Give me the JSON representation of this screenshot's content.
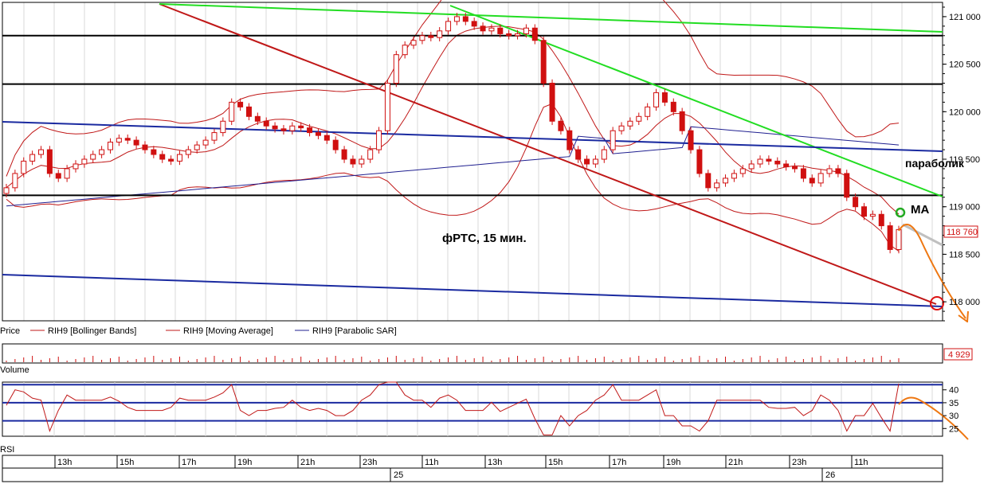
{
  "chart_data": {
    "type": "line",
    "title": "фРТС,  15 мин.",
    "annotations": {
      "sar_label": "параболик",
      "ma_label": "МА"
    },
    "price_panel": {
      "ylim": [
        117800,
        121150
      ],
      "yticks": [
        118000,
        118500,
        119000,
        119500,
        120000,
        120500,
        121000
      ],
      "ytick_labels": [
        "118 000",
        "118 500",
        "119 000",
        "119 500",
        "120 000",
        "120 500",
        "121 000"
      ],
      "current_price": 118760,
      "current_price_label": "118 760",
      "horizontal_levels": [
        120800,
        120290,
        119120
      ],
      "legend": [
        {
          "label": "Price",
          "color": "#d01010"
        },
        {
          "label": "RIH9 [Bollinger Bands]",
          "color": "#c01818"
        },
        {
          "label": "RIH9 [Moving Average]",
          "color": "#c01818"
        },
        {
          "label": "RIH9 [Parabolic SAR]",
          "color": "#202090"
        }
      ],
      "candles_close": [
        119200,
        119350,
        119480,
        119550,
        119600,
        119350,
        119300,
        119400,
        119450,
        119500,
        119550,
        119600,
        119680,
        119720,
        119700,
        119650,
        119600,
        119550,
        119500,
        119480,
        119550,
        119600,
        119650,
        119700,
        119780,
        119900,
        120100,
        120050,
        119950,
        119900,
        119850,
        119820,
        119800,
        119850,
        119830,
        119780,
        119750,
        119700,
        119600,
        119500,
        119450,
        119500,
        119600,
        119800,
        120300,
        120600,
        120700,
        120750,
        120800,
        120780,
        120850,
        120950,
        121000,
        120950,
        120900,
        120850,
        120880,
        120820,
        120800,
        120820,
        120880,
        120750,
        120300,
        119900,
        119800,
        119600,
        119500,
        119450,
        119500,
        119600,
        119800,
        119850,
        119900,
        119950,
        120050,
        120200,
        120100,
        120000,
        119800,
        119600,
        119350,
        119200,
        119250,
        119300,
        119350,
        119400,
        119450,
        119500,
        119480,
        119450,
        119420,
        119400,
        119300,
        119250,
        119350,
        119400,
        119350,
        119100,
        119000,
        118900,
        118920,
        118800,
        118550,
        118760
      ]
    },
    "volume_panel": {
      "label": "Volume",
      "last_value_label": "4 929"
    },
    "rsi_panel": {
      "label": "RSI",
      "ylim": [
        22,
        43
      ],
      "yticks": [
        25,
        30,
        35,
        40
      ],
      "ytick_labels": [
        "25",
        "30",
        "35",
        "40"
      ],
      "levels": [
        42,
        35,
        28
      ]
    },
    "time_axis": {
      "hour_labels": [
        "13h",
        "15h",
        "17h",
        "19h",
        "21h",
        "23h",
        "11h",
        "13h",
        "15h",
        "17h",
        "19h",
        "21h",
        "23h",
        "11h"
      ],
      "day_labels": [
        "25",
        "26"
      ]
    }
  }
}
